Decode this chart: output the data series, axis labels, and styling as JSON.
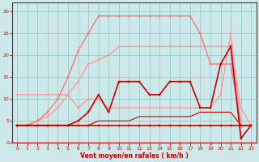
{
  "xlabel": "Vent moyen/en rafales ( km/h )",
  "bg_color": "#cce8e8",
  "grid_color": "#99cccc",
  "xlim": [
    -0.5,
    23.5
  ],
  "ylim": [
    0,
    32
  ],
  "yticks": [
    0,
    5,
    10,
    15,
    20,
    25,
    30
  ],
  "xticks": [
    0,
    1,
    2,
    3,
    4,
    5,
    6,
    7,
    8,
    9,
    10,
    11,
    12,
    13,
    14,
    15,
    16,
    17,
    18,
    19,
    20,
    21,
    22,
    23
  ],
  "lines": [
    {
      "x": [
        0,
        1,
        2,
        3,
        4,
        5,
        6,
        7,
        8,
        9,
        10,
        11,
        12,
        13,
        14,
        15,
        16,
        17,
        18,
        19,
        20,
        21,
        22,
        23
      ],
      "y": [
        4,
        4,
        4,
        4,
        4,
        4,
        4,
        4,
        4,
        4,
        4,
        4,
        4,
        4,
        4,
        4,
        4,
        4,
        4,
        4,
        4,
        4,
        4,
        4
      ],
      "color": "#cc0000",
      "lw": 1.2,
      "marker": "s",
      "ms": 2.0,
      "ls": "-",
      "zorder": 5
    },
    {
      "x": [
        0,
        1,
        2,
        3,
        4,
        5,
        6,
        7,
        8,
        9,
        10,
        11,
        12,
        13,
        14,
        15,
        16,
        17,
        18,
        19,
        20,
        21,
        22,
        23
      ],
      "y": [
        4,
        4,
        4,
        4,
        4,
        4,
        4,
        4,
        5,
        5,
        5,
        5,
        6,
        6,
        6,
        6,
        6,
        6,
        7,
        7,
        7,
        7,
        4,
        4
      ],
      "color": "#cc0000",
      "lw": 0.8,
      "marker": null,
      "ms": 0,
      "ls": "-",
      "zorder": 4
    },
    {
      "x": [
        0,
        1,
        2,
        3,
        4,
        5,
        6,
        7,
        8,
        9,
        10,
        11,
        12,
        13,
        14,
        15,
        16,
        17,
        18,
        19,
        20,
        21,
        22,
        23
      ],
      "y": [
        4,
        4,
        4,
        4,
        4,
        4,
        5,
        7,
        11,
        7,
        14,
        14,
        14,
        11,
        11,
        14,
        14,
        14,
        8,
        8,
        18,
        22,
        1,
        4
      ],
      "color": "#cc0000",
      "lw": 1.2,
      "marker": "s",
      "ms": 2.0,
      "ls": "-",
      "zorder": 5
    },
    {
      "x": [
        0,
        1,
        2,
        3,
        4,
        5,
        6,
        7,
        8,
        9,
        10,
        11,
        12,
        13,
        14,
        15,
        16,
        17,
        18,
        19,
        20,
        21,
        22,
        23
      ],
      "y": [
        11,
        11,
        11,
        11,
        11,
        11,
        8,
        10,
        10,
        8,
        8,
        8,
        8,
        8,
        8,
        8,
        8,
        8,
        8,
        8,
        11,
        25,
        4,
        4
      ],
      "color": "#ff9999",
      "lw": 1.0,
      "marker": "s",
      "ms": 2.0,
      "ls": "-",
      "zorder": 3
    },
    {
      "x": [
        0,
        1,
        2,
        3,
        4,
        5,
        6,
        7,
        8,
        9,
        10,
        11,
        12,
        13,
        14,
        15,
        16,
        17,
        18,
        19,
        20,
        21,
        22,
        23
      ],
      "y": [
        4,
        4,
        5,
        6,
        8,
        11,
        14,
        18,
        19,
        20,
        22,
        22,
        22,
        22,
        22,
        22,
        22,
        22,
        22,
        22,
        22,
        22,
        8,
        4
      ],
      "color": "#ff9999",
      "lw": 1.0,
      "marker": "s",
      "ms": 2.0,
      "ls": "-",
      "zorder": 3
    },
    {
      "x": [
        0,
        1,
        2,
        3,
        4,
        5,
        6,
        7,
        8,
        9,
        10,
        11,
        12,
        13,
        14,
        15,
        16,
        17,
        18,
        19,
        20,
        21,
        22,
        23
      ],
      "y": [
        4,
        4,
        5,
        7,
        10,
        15,
        21,
        25,
        29,
        29,
        29,
        29,
        29,
        29,
        29,
        29,
        29,
        29,
        25,
        18,
        18,
        18,
        4,
        4
      ],
      "color": "#ff7777",
      "lw": 1.0,
      "marker": "s",
      "ms": 2.0,
      "ls": "-",
      "zorder": 3
    }
  ]
}
